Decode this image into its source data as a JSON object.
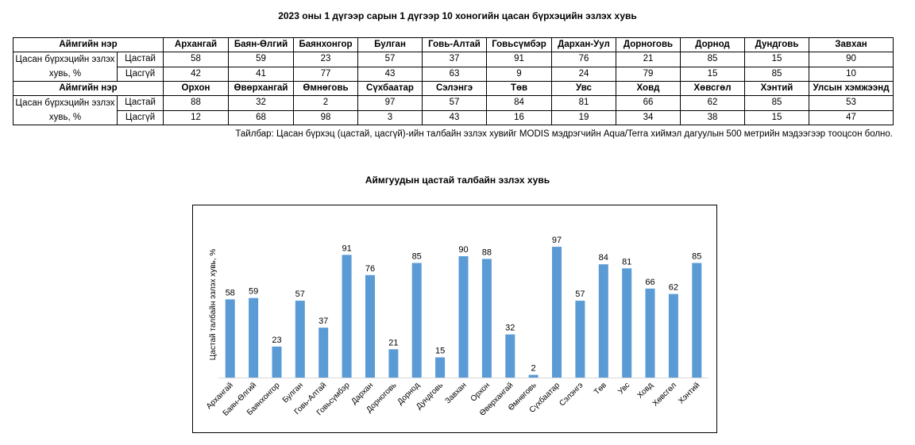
{
  "title": "2023 оны 1 дүгээр сарын 1 дүгээр 10 хоногийн цасан бүрхэцийн эзлэх хувь",
  "table": {
    "header_label": "Аймгийн нэр",
    "row_label": "Цасан бүрхэцийн эзлэх хувь, %",
    "snowy_label": "Цастай",
    "nosnow_label": "Цасгүй",
    "block1": {
      "names": [
        "Архангай",
        "Баян-Өлгий",
        "Баянхонгор",
        "Булган",
        "Говь-Алтай",
        "Говьсүмбэр",
        "Дархан-Уул",
        "Дорноговь",
        "Дорнод",
        "Дундговь",
        "Завхан"
      ],
      "snowy": [
        "58",
        "59",
        "23",
        "57",
        "37",
        "91",
        "76",
        "21",
        "85",
        "15",
        "90"
      ],
      "nosnow": [
        "42",
        "41",
        "77",
        "43",
        "63",
        "9",
        "24",
        "79",
        "15",
        "85",
        "10"
      ]
    },
    "block2": {
      "names": [
        "Орхон",
        "Өвөрхангай",
        "Өмнөговь",
        "Сүхбаатар",
        "Сэлэнгэ",
        "Төв",
        "Увс",
        "Ховд",
        "Хөвсгөл",
        "Хэнтий",
        "Улсын хэмжээнд"
      ],
      "snowy": [
        "88",
        "32",
        "2",
        "97",
        "57",
        "84",
        "81",
        "66",
        "62",
        "85",
        "53"
      ],
      "nosnow": [
        "12",
        "68",
        "98",
        "3",
        "43",
        "16",
        "19",
        "34",
        "38",
        "15",
        "47"
      ]
    }
  },
  "note": "Тайлбар: Цасан бүрхэц (цастай, цасгүй)-ийн талбайн эзлэх хувийг MODIS мэдрэгчийн Aqua/Terra хиймэл дагуулын 500 метрийн мэдээгээр тооцсон болно.",
  "chart_data": {
    "type": "bar",
    "title": "Аймгуудын цастай талбайн эзлэх хувь",
    "ylabel": "Цастай талбайн эзлэх хувь, %",
    "xlabel": "",
    "ylim": [
      0,
      100
    ],
    "grid": false,
    "bar_color": "#5b9bd5",
    "categories": [
      "Архангай",
      "Баян-Өлгий",
      "Баянхонгор",
      "Булган",
      "Говь-Алтай",
      "Говьсүмбэр",
      "Дархан",
      "Дорноговь",
      "Дорнод",
      "Дундговь",
      "Завхан",
      "Орхон",
      "Өвөрхангай",
      "Өмнөговь",
      "Сүхбаатар",
      "Сэлэнгэ",
      "Төв",
      "Увс",
      "Ховд",
      "Хөвсгөл",
      "Хэнтий"
    ],
    "values": [
      58,
      59,
      23,
      57,
      37,
      91,
      76,
      21,
      85,
      15,
      90,
      88,
      32,
      2,
      97,
      57,
      84,
      81,
      66,
      62,
      85
    ]
  }
}
